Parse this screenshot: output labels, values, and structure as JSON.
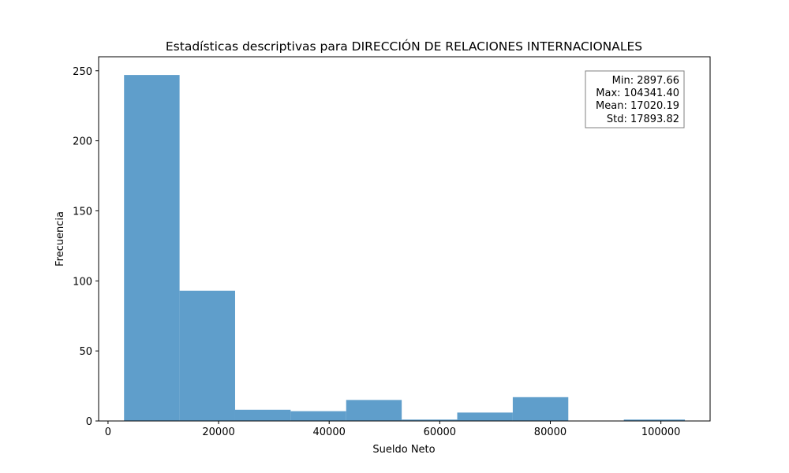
{
  "chart_data": {
    "type": "bar",
    "title": "Estadísticas descriptivas para DIRECCIÓN DE RELACIONES INTERNACIONALES",
    "xlabel": "Sueldo Neto",
    "ylabel": "Frecuencia",
    "xlim": [
      -1700,
      108900
    ],
    "ylim": [
      0,
      260
    ],
    "x_ticks": [
      0,
      20000,
      40000,
      60000,
      80000,
      100000
    ],
    "y_ticks": [
      0,
      50,
      100,
      150,
      200,
      250
    ],
    "bins": [
      {
        "x0": 2897.66,
        "x1": 12942.03,
        "count": 247
      },
      {
        "x0": 12942.03,
        "x1": 22986.41,
        "count": 93
      },
      {
        "x0": 22986.41,
        "x1": 33030.78,
        "count": 8
      },
      {
        "x0": 33030.78,
        "x1": 43075.15,
        "count": 7
      },
      {
        "x0": 43075.15,
        "x1": 53119.53,
        "count": 15
      },
      {
        "x0": 53119.53,
        "x1": 63163.9,
        "count": 1
      },
      {
        "x0": 63163.9,
        "x1": 73208.28,
        "count": 6
      },
      {
        "x0": 73208.28,
        "x1": 83252.65,
        "count": 17
      },
      {
        "x0": 83252.65,
        "x1": 93297.03,
        "count": 0
      },
      {
        "x0": 93297.03,
        "x1": 104341.4,
        "count": 1
      }
    ],
    "bar_color": "#5f9ecb",
    "grid": false,
    "stats_box": {
      "placement": "top-right",
      "lines": [
        "Min: 2897.66",
        "Max: 104341.40",
        "Mean: 17020.19",
        "Std: 17893.82"
      ]
    }
  }
}
